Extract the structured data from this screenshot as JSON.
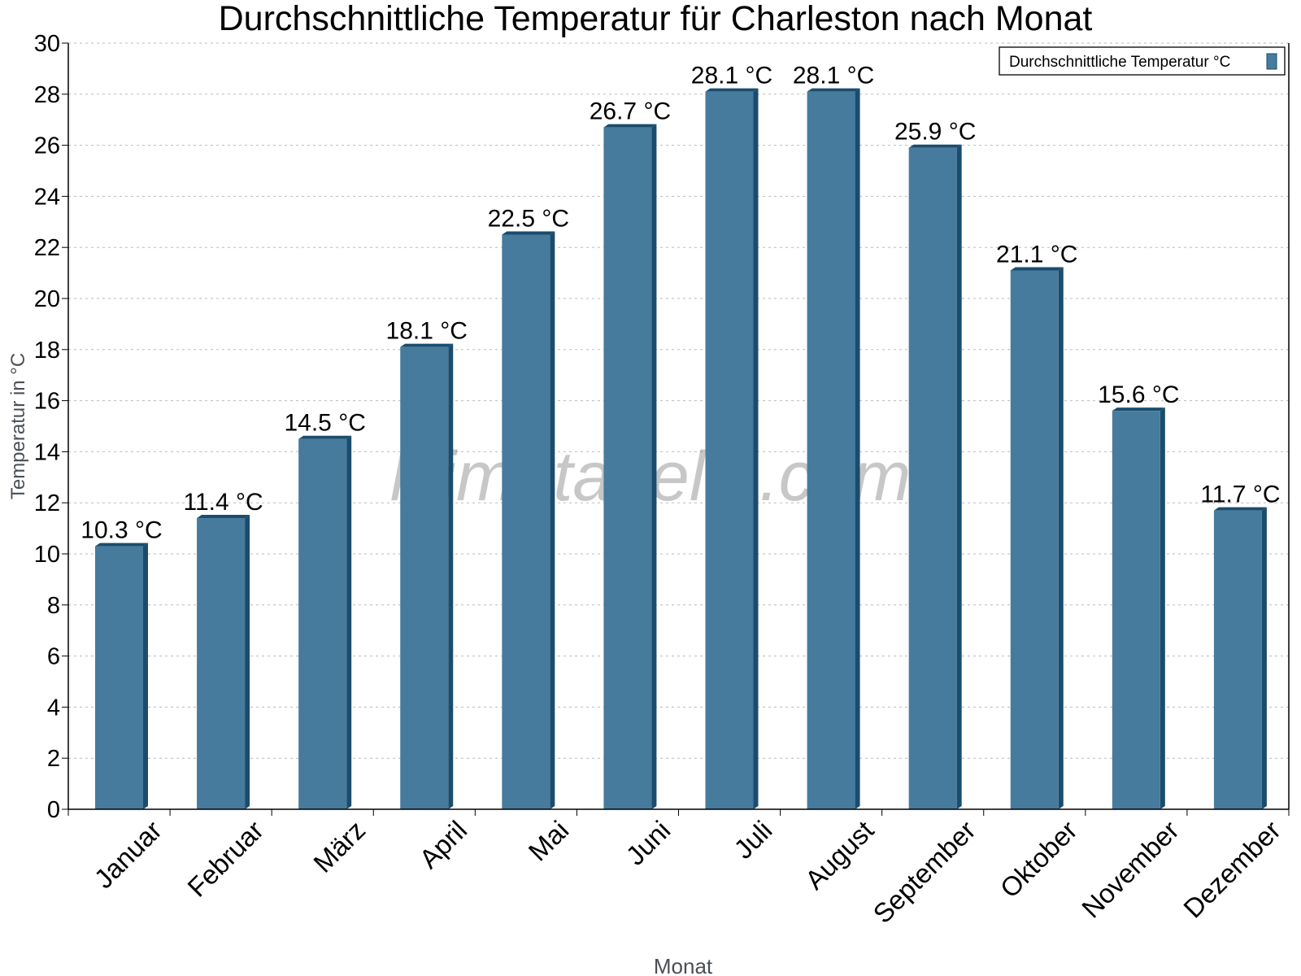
{
  "chart_data": {
    "type": "bar",
    "title": "Durchschnittliche Temperatur für Charleston nach Monat",
    "xlabel": "Monat",
    "ylabel": "Temperatur in °C",
    "categories": [
      "Januar",
      "Februar",
      "März",
      "April",
      "Mai",
      "Juni",
      "Juli",
      "August",
      "September",
      "Oktober",
      "November",
      "Dezember"
    ],
    "series": [
      {
        "name": "Durchschnittliche Temperatur °C",
        "values": [
          10.3,
          11.4,
          14.5,
          18.1,
          22.5,
          26.7,
          28.1,
          28.1,
          25.9,
          21.1,
          15.6,
          11.7
        ],
        "labels": [
          "10.3 °C",
          "11.4 °C",
          "14.5 °C",
          "18.1 °C",
          "22.5 °C",
          "26.7 °C",
          "28.1 °C",
          "28.1 °C",
          "25.9 °C",
          "21.1 °C",
          "15.6 °C",
          "11.7 °C"
        ]
      }
    ],
    "ylim": [
      0,
      30
    ],
    "yticks": [
      0,
      2,
      4,
      6,
      8,
      10,
      12,
      14,
      16,
      18,
      20,
      22,
      24,
      26,
      28,
      30
    ],
    "grid": true,
    "legend": "top-right",
    "colors": {
      "bar": "#467b9d",
      "bar_side": "#1b4c6e",
      "grid": "#bbbbbb"
    }
  },
  "watermark": "klimatabelle.com"
}
